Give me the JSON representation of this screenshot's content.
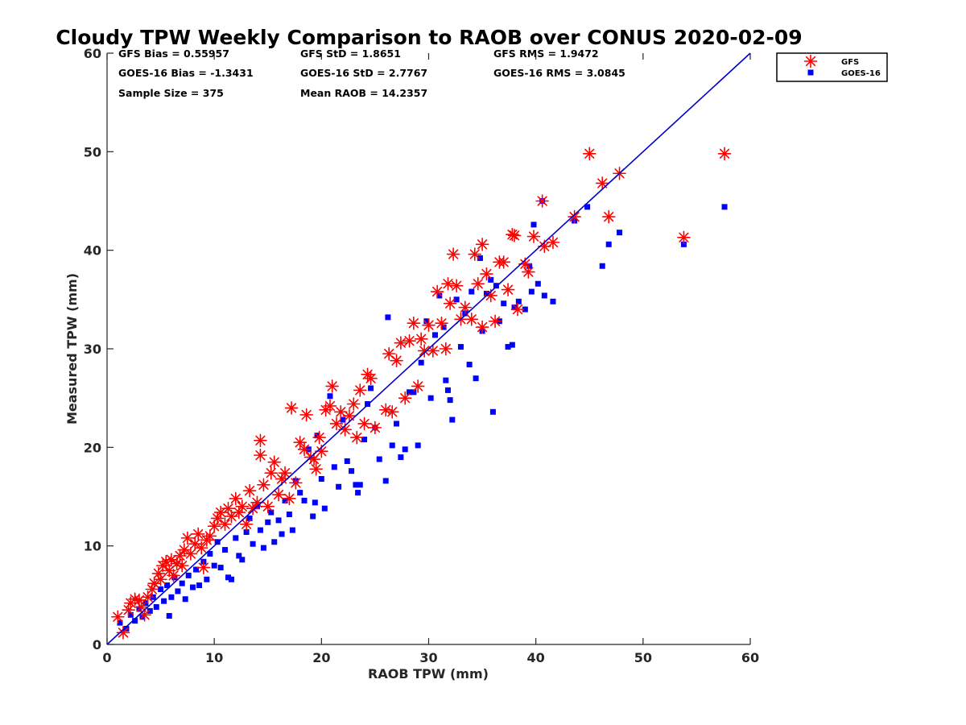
{
  "chart_data": {
    "type": "scatter",
    "title": "Cloudy TPW Weekly Comparison to RAOB over CONUS 2020-02-09",
    "xlabel": "RAOB TPW (mm)",
    "ylabel": "Measured TPW (mm)",
    "xlim": [
      0,
      60
    ],
    "ylim": [
      0,
      60
    ],
    "xticks": [
      "0",
      "10",
      "20",
      "30",
      "40",
      "50",
      "60"
    ],
    "yticks": [
      "0",
      "10",
      "20",
      "30",
      "40",
      "50",
      "60"
    ],
    "grid": false,
    "legend_position": "top-right (outside plot)",
    "stats": [
      [
        "GFS Bias = 0.55957",
        "GFS StD = 1.8651",
        "GFS RMS = 1.9472"
      ],
      [
        "GOES-16 Bias = -1.3431",
        "GOES-16 StD = 2.7767",
        "GOES-16 RMS = 3.0845"
      ],
      [
        "Sample Size = 375",
        "Mean RAOB = 14.2357"
      ]
    ],
    "reference_line": {
      "x": [
        0,
        60
      ],
      "y": [
        0,
        60
      ],
      "color": "#0000cc"
    },
    "series": [
      {
        "name": "GFS",
        "marker": "asterisk",
        "color": "#ff0000",
        "points": [
          [
            1,
            2.8
          ],
          [
            1.5,
            1.2
          ],
          [
            2,
            3.5
          ],
          [
            2.2,
            4.2
          ],
          [
            2.6,
            4.6
          ],
          [
            3,
            4.5
          ],
          [
            3.2,
            3.8
          ],
          [
            3.5,
            3.0
          ],
          [
            3.8,
            4.8
          ],
          [
            4.2,
            5.6
          ],
          [
            4.4,
            6.2
          ],
          [
            4.8,
            7.2
          ],
          [
            5.0,
            6.6
          ],
          [
            5.2,
            8.0
          ],
          [
            5.5,
            8.4
          ],
          [
            5.8,
            7.5
          ],
          [
            6.0,
            8.6
          ],
          [
            6.2,
            7.0
          ],
          [
            6.5,
            8.2
          ],
          [
            6.8,
            9.0
          ],
          [
            7.0,
            8.0
          ],
          [
            7.2,
            9.6
          ],
          [
            7.5,
            10.8
          ],
          [
            7.8,
            9.2
          ],
          [
            8.2,
            10.2
          ],
          [
            8.5,
            11.2
          ],
          [
            8.8,
            9.8
          ],
          [
            9.0,
            7.8
          ],
          [
            9.3,
            10.6
          ],
          [
            9.6,
            11.0
          ],
          [
            10.0,
            12.0
          ],
          [
            10.3,
            12.8
          ],
          [
            10.6,
            13.4
          ],
          [
            11.0,
            12.2
          ],
          [
            11.3,
            13.8
          ],
          [
            11.6,
            13.0
          ],
          [
            12.0,
            14.8
          ],
          [
            12.3,
            13.4
          ],
          [
            12.6,
            14.0
          ],
          [
            13.0,
            12.2
          ],
          [
            13.3,
            15.6
          ],
          [
            13.6,
            13.8
          ],
          [
            14.0,
            14.4
          ],
          [
            14.3,
            20.7
          ],
          [
            14.3,
            19.2
          ],
          [
            14.6,
            16.2
          ],
          [
            15.0,
            14.0
          ],
          [
            15.3,
            17.4
          ],
          [
            15.6,
            18.5
          ],
          [
            16.0,
            15.2
          ],
          [
            16.3,
            16.8
          ],
          [
            16.6,
            17.4
          ],
          [
            17.0,
            14.8
          ],
          [
            17.2,
            24.0
          ],
          [
            17.6,
            16.4
          ],
          [
            18.0,
            20.5
          ],
          [
            18.4,
            19.8
          ],
          [
            18.6,
            23.3
          ],
          [
            19.0,
            19.0
          ],
          [
            19.3,
            18.8
          ],
          [
            19.5,
            17.8
          ],
          [
            19.8,
            21.0
          ],
          [
            20.0,
            19.6
          ],
          [
            20.4,
            23.8
          ],
          [
            20.8,
            24.2
          ],
          [
            21.0,
            26.2
          ],
          [
            21.4,
            22.4
          ],
          [
            21.8,
            23.6
          ],
          [
            22.2,
            21.8
          ],
          [
            22.6,
            23.2
          ],
          [
            23.0,
            24.4
          ],
          [
            23.3,
            21.0
          ],
          [
            23.6,
            25.8
          ],
          [
            24.0,
            22.4
          ],
          [
            24.3,
            27.4
          ],
          [
            24.6,
            27.0
          ],
          [
            25.0,
            22.0
          ],
          [
            26.0,
            23.8
          ],
          [
            26.3,
            29.5
          ],
          [
            26.6,
            23.6
          ],
          [
            27.0,
            28.8
          ],
          [
            27.4,
            30.6
          ],
          [
            27.8,
            25.0
          ],
          [
            28.2,
            30.8
          ],
          [
            28.6,
            32.6
          ],
          [
            29.0,
            26.2
          ],
          [
            29.3,
            31.0
          ],
          [
            29.6,
            29.8
          ],
          [
            30.0,
            32.4
          ],
          [
            30.4,
            29.8
          ],
          [
            30.8,
            35.8
          ],
          [
            31.2,
            32.6
          ],
          [
            31.6,
            30.0
          ],
          [
            31.8,
            36.6
          ],
          [
            32.0,
            34.6
          ],
          [
            32.3,
            39.6
          ],
          [
            32.6,
            36.4
          ],
          [
            33.0,
            33.0
          ],
          [
            33.4,
            34.2
          ],
          [
            34.0,
            33.0
          ],
          [
            34.3,
            39.6
          ],
          [
            34.6,
            36.6
          ],
          [
            35.0,
            40.6
          ],
          [
            35.0,
            32.2
          ],
          [
            35.4,
            37.6
          ],
          [
            35.8,
            35.4
          ],
          [
            36.2,
            32.8
          ],
          [
            36.6,
            38.8
          ],
          [
            37.0,
            38.8
          ],
          [
            37.4,
            36.0
          ],
          [
            37.8,
            41.6
          ],
          [
            38.0,
            41.5
          ],
          [
            38.3,
            34.0
          ],
          [
            39.0,
            38.6
          ],
          [
            39.3,
            37.8
          ],
          [
            39.8,
            41.4
          ],
          [
            40.6,
            45.0
          ],
          [
            40.8,
            40.4
          ],
          [
            41.6,
            40.8
          ],
          [
            43.6,
            43.4
          ],
          [
            45.0,
            49.8
          ],
          [
            46.2,
            46.8
          ],
          [
            46.8,
            43.4
          ],
          [
            47.8,
            47.8
          ],
          [
            53.8,
            41.3
          ],
          [
            57.6,
            49.8
          ]
        ]
      },
      {
        "name": "GOES-16",
        "marker": "square",
        "color": "#0000ff",
        "points": [
          [
            1.2,
            2.2
          ],
          [
            1.8,
            1.6
          ],
          [
            2.2,
            3.0
          ],
          [
            2.6,
            2.4
          ],
          [
            3.0,
            3.6
          ],
          [
            3.3,
            2.8
          ],
          [
            3.6,
            4.2
          ],
          [
            4.0,
            3.4
          ],
          [
            4.3,
            4.8
          ],
          [
            4.6,
            3.8
          ],
          [
            5.0,
            5.6
          ],
          [
            5.3,
            4.4
          ],
          [
            5.6,
            6.0
          ],
          [
            5.8,
            2.9
          ],
          [
            6.0,
            4.8
          ],
          [
            6.3,
            6.8
          ],
          [
            6.6,
            5.4
          ],
          [
            7.0,
            6.2
          ],
          [
            7.3,
            4.6
          ],
          [
            7.6,
            7.0
          ],
          [
            8.0,
            5.8
          ],
          [
            8.3,
            7.6
          ],
          [
            8.6,
            6.0
          ],
          [
            9.0,
            8.4
          ],
          [
            9.3,
            6.6
          ],
          [
            9.6,
            9.2
          ],
          [
            10.0,
            8.0
          ],
          [
            10.3,
            10.4
          ],
          [
            10.6,
            7.8
          ],
          [
            11.0,
            9.6
          ],
          [
            11.3,
            6.8
          ],
          [
            11.6,
            6.6
          ],
          [
            12.0,
            10.8
          ],
          [
            12.3,
            9.0
          ],
          [
            12.6,
            8.6
          ],
          [
            13.0,
            11.4
          ],
          [
            13.3,
            12.8
          ],
          [
            13.6,
            10.2
          ],
          [
            14.0,
            14.0
          ],
          [
            14.3,
            11.6
          ],
          [
            14.6,
            9.8
          ],
          [
            15.0,
            12.4
          ],
          [
            15.3,
            13.4
          ],
          [
            15.6,
            10.4
          ],
          [
            16.0,
            12.6
          ],
          [
            16.3,
            11.2
          ],
          [
            16.6,
            14.6
          ],
          [
            17.0,
            13.2
          ],
          [
            17.3,
            11.6
          ],
          [
            17.6,
            16.6
          ],
          [
            18.0,
            15.4
          ],
          [
            18.4,
            14.6
          ],
          [
            18.8,
            19.8
          ],
          [
            19.2,
            13.0
          ],
          [
            19.4,
            14.4
          ],
          [
            19.6,
            21.2
          ],
          [
            20.0,
            16.8
          ],
          [
            20.3,
            13.8
          ],
          [
            20.8,
            25.2
          ],
          [
            21.2,
            18.0
          ],
          [
            21.6,
            16.0
          ],
          [
            22.0,
            22.8
          ],
          [
            22.4,
            18.6
          ],
          [
            22.8,
            17.6
          ],
          [
            23.2,
            16.2
          ],
          [
            23.4,
            15.4
          ],
          [
            23.6,
            16.2
          ],
          [
            24.0,
            20.8
          ],
          [
            24.3,
            24.4
          ],
          [
            24.6,
            26.0
          ],
          [
            25.0,
            22.0
          ],
          [
            25.4,
            18.8
          ],
          [
            26.0,
            16.6
          ],
          [
            26.2,
            33.2
          ],
          [
            26.6,
            20.2
          ],
          [
            27.0,
            22.4
          ],
          [
            27.4,
            19.0
          ],
          [
            27.8,
            19.8
          ],
          [
            28.2,
            25.6
          ],
          [
            28.6,
            25.6
          ],
          [
            29.0,
            20.2
          ],
          [
            29.3,
            28.6
          ],
          [
            29.8,
            32.8
          ],
          [
            30.2,
            25.0
          ],
          [
            30.6,
            31.4
          ],
          [
            31.0,
            35.4
          ],
          [
            31.4,
            32.2
          ],
          [
            31.6,
            26.8
          ],
          [
            31.8,
            25.8
          ],
          [
            32.0,
            24.8
          ],
          [
            32.2,
            22.8
          ],
          [
            32.6,
            35.0
          ],
          [
            33.0,
            30.2
          ],
          [
            33.4,
            33.6
          ],
          [
            33.8,
            28.4
          ],
          [
            34.0,
            35.8
          ],
          [
            34.4,
            27.0
          ],
          [
            34.8,
            39.2
          ],
          [
            35.0,
            31.8
          ],
          [
            35.4,
            35.6
          ],
          [
            35.8,
            37.0
          ],
          [
            36.0,
            23.6
          ],
          [
            36.3,
            36.4
          ],
          [
            36.6,
            32.8
          ],
          [
            37.0,
            34.6
          ],
          [
            37.4,
            30.2
          ],
          [
            37.8,
            30.4
          ],
          [
            38.0,
            34.2
          ],
          [
            38.4,
            34.8
          ],
          [
            39.0,
            34.0
          ],
          [
            39.4,
            38.4
          ],
          [
            39.6,
            35.8
          ],
          [
            39.8,
            42.6
          ],
          [
            40.2,
            36.6
          ],
          [
            40.6,
            45.0
          ],
          [
            40.8,
            35.4
          ],
          [
            41.6,
            34.8
          ],
          [
            43.6,
            43.0
          ],
          [
            44.8,
            44.4
          ],
          [
            46.2,
            38.4
          ],
          [
            46.8,
            40.6
          ],
          [
            47.8,
            41.8
          ],
          [
            53.8,
            40.6
          ],
          [
            57.6,
            44.4
          ]
        ]
      }
    ]
  }
}
